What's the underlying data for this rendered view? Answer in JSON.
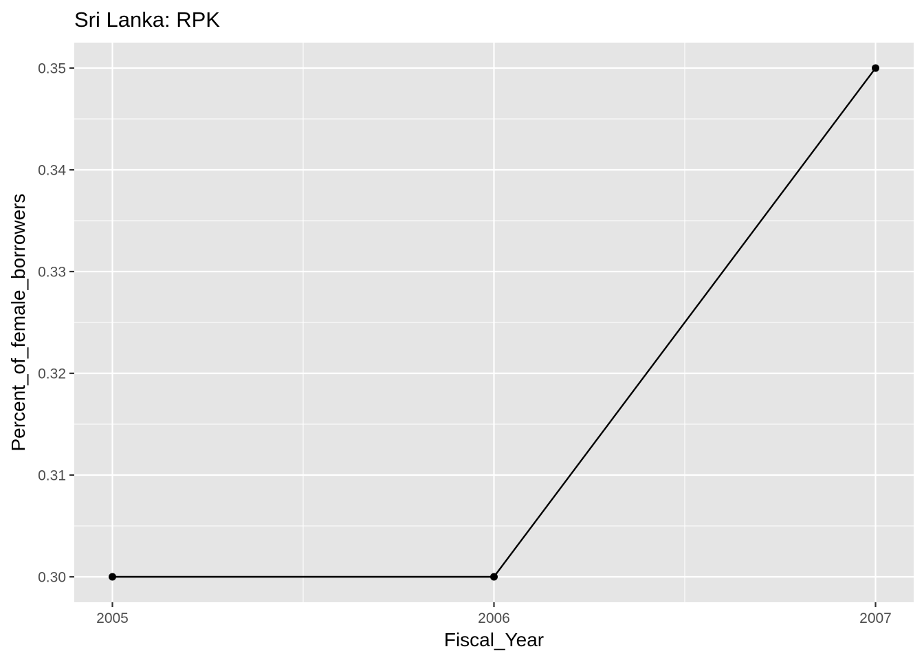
{
  "chart_data": {
    "type": "line",
    "title": "Sri Lanka:  RPK",
    "xlabel": "Fiscal_Year",
    "ylabel": "Percent_of_female_borrowers",
    "x": [
      2005,
      2006,
      2007
    ],
    "series": [
      {
        "values": [
          0.3,
          0.3,
          0.35
        ]
      }
    ],
    "x_ticks": [
      "2005",
      "2006",
      "2007"
    ],
    "y_ticks": [
      "0.30",
      "0.31",
      "0.32",
      "0.33",
      "0.34",
      "0.35"
    ],
    "xlim": [
      2004.9,
      2007.1
    ],
    "ylim": [
      0.2975,
      0.3525
    ],
    "grid": true,
    "colors": {
      "panel_background": "#e5e5e5",
      "grid": "#ffffff",
      "line": "#000000",
      "points": "#000000"
    }
  }
}
